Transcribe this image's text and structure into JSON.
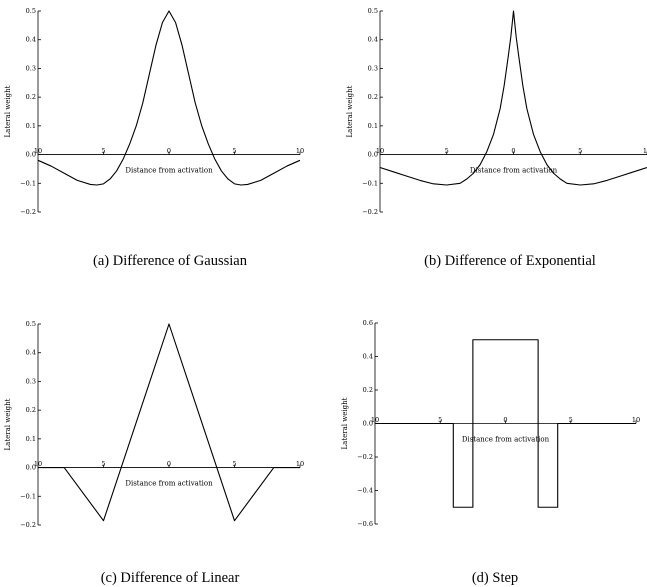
{
  "figure": {
    "panels": [
      {
        "caption": "(a) Difference of Gaussian"
      },
      {
        "caption": "(b) Difference of Exponential"
      },
      {
        "caption": "(c) Difference of Linear"
      },
      {
        "caption": "(d) Step"
      }
    ]
  },
  "chart_data": [
    {
      "type": "line",
      "kernel": "difference-of-gaussian",
      "xlabel": "Distance from activation",
      "ylabel": "Lateral weight",
      "xlim": [
        -10,
        10
      ],
      "ylim": [
        -0.2,
        0.5
      ],
      "xticks": [
        -10,
        -5,
        0,
        5,
        10
      ],
      "xtick_labels": [
        "10",
        "5",
        "0",
        "5",
        "10"
      ],
      "yticks": [
        -0.2,
        -0.1,
        0.0,
        0.1,
        0.2,
        0.3,
        0.4,
        0.5
      ],
      "ytick_labels": [
        "−0.2",
        "−0.1",
        "0.0",
        "0.1",
        "0.2",
        "0.3",
        "0.4",
        "0.5"
      ],
      "series": [
        {
          "x": [
            -10,
            -9,
            -8,
            -7,
            -6,
            -5.5,
            -5,
            -4.5,
            -4,
            -3.5,
            -3,
            -2.5,
            -2,
            -1.5,
            -1,
            -0.5,
            0,
            0.5,
            1,
            1.5,
            2,
            2.5,
            3,
            3.5,
            4,
            4.5,
            5,
            5.5,
            6,
            7,
            8,
            9,
            10
          ],
          "y": [
            -0.02,
            -0.04,
            -0.065,
            -0.09,
            -0.104,
            -0.106,
            -0.102,
            -0.085,
            -0.057,
            -0.016,
            0.037,
            0.1,
            0.18,
            0.28,
            0.38,
            0.46,
            0.5,
            0.46,
            0.38,
            0.28,
            0.18,
            0.1,
            0.037,
            -0.016,
            -0.057,
            -0.085,
            -0.102,
            -0.106,
            -0.104,
            -0.09,
            -0.065,
            -0.04,
            -0.02
          ]
        }
      ]
    },
    {
      "type": "line",
      "kernel": "difference-of-exponential",
      "xlabel": "Distance from activation",
      "ylabel": "Lateral weight",
      "xlim": [
        -10,
        10
      ],
      "ylim": [
        -0.2,
        0.5
      ],
      "xticks": [
        -10,
        -5,
        0,
        5,
        10
      ],
      "xtick_labels": [
        "10",
        "5",
        "0",
        "5",
        "10"
      ],
      "yticks": [
        -0.2,
        -0.1,
        0.0,
        0.1,
        0.2,
        0.3,
        0.4,
        0.5
      ],
      "ytick_labels": [
        "−0.2",
        "−0.1",
        "0.0",
        "0.1",
        "0.2",
        "0.3",
        "0.4",
        "0.5"
      ],
      "series": [
        {
          "x": [
            -10,
            -9,
            -8,
            -7,
            -6,
            -5,
            -4,
            -3.5,
            -3,
            -2.5,
            -2,
            -1.5,
            -1,
            -0.7,
            -0.4,
            -0.2,
            0,
            0.2,
            0.4,
            0.7,
            1,
            1.5,
            2,
            2.5,
            3,
            3.5,
            4,
            5,
            6,
            7,
            8,
            9,
            10
          ],
          "y": [
            -0.045,
            -0.06,
            -0.075,
            -0.09,
            -0.102,
            -0.106,
            -0.1,
            -0.085,
            -0.065,
            -0.035,
            0.01,
            0.07,
            0.16,
            0.24,
            0.34,
            0.41,
            0.5,
            0.41,
            0.34,
            0.24,
            0.16,
            0.07,
            0.01,
            -0.035,
            -0.065,
            -0.085,
            -0.1,
            -0.106,
            -0.102,
            -0.09,
            -0.075,
            -0.06,
            -0.045
          ]
        }
      ]
    },
    {
      "type": "line",
      "kernel": "difference-of-linear",
      "xlabel": "Distance from activation",
      "ylabel": "Lateral weight",
      "xlim": [
        -10,
        10
      ],
      "ylim": [
        -0.2,
        0.5
      ],
      "xticks": [
        -10,
        -5,
        0,
        5,
        10
      ],
      "xtick_labels": [
        "10",
        "5",
        "0",
        "5",
        "10"
      ],
      "yticks": [
        -0.2,
        -0.1,
        0.0,
        0.1,
        0.2,
        0.3,
        0.4,
        0.5
      ],
      "ytick_labels": [
        "−0.2",
        "−0.1",
        "0.0",
        "0.1",
        "0.2",
        "0.3",
        "0.4",
        "0.5"
      ],
      "series": [
        {
          "x": [
            -10,
            -8,
            -5,
            0,
            5,
            8,
            10
          ],
          "y": [
            0,
            0,
            -0.185,
            0.5,
            -0.185,
            0,
            0
          ]
        }
      ]
    },
    {
      "type": "line",
      "kernel": "step",
      "xlabel": "Distance from activation",
      "ylabel": "Lateral weight",
      "xlim": [
        -10,
        10
      ],
      "ylim": [
        -0.6,
        0.6
      ],
      "xticks": [
        -10,
        -5,
        0,
        5,
        10
      ],
      "xtick_labels": [
        "10",
        "5",
        "0",
        "5",
        "10"
      ],
      "yticks": [
        -0.6,
        -0.4,
        -0.2,
        0.0,
        0.2,
        0.4,
        0.6
      ],
      "ytick_labels": [
        "−0.6",
        "−0.4",
        "−0.2",
        "0.0",
        "0.2",
        "0.4",
        "0.6"
      ],
      "series": [
        {
          "x": [
            -10,
            -4,
            -4,
            -2.5,
            -2.5,
            2.5,
            2.5,
            4,
            4,
            10
          ],
          "y": [
            0,
            0,
            -0.5,
            -0.5,
            0.5,
            0.5,
            -0.5,
            -0.5,
            0,
            0
          ]
        }
      ]
    }
  ]
}
